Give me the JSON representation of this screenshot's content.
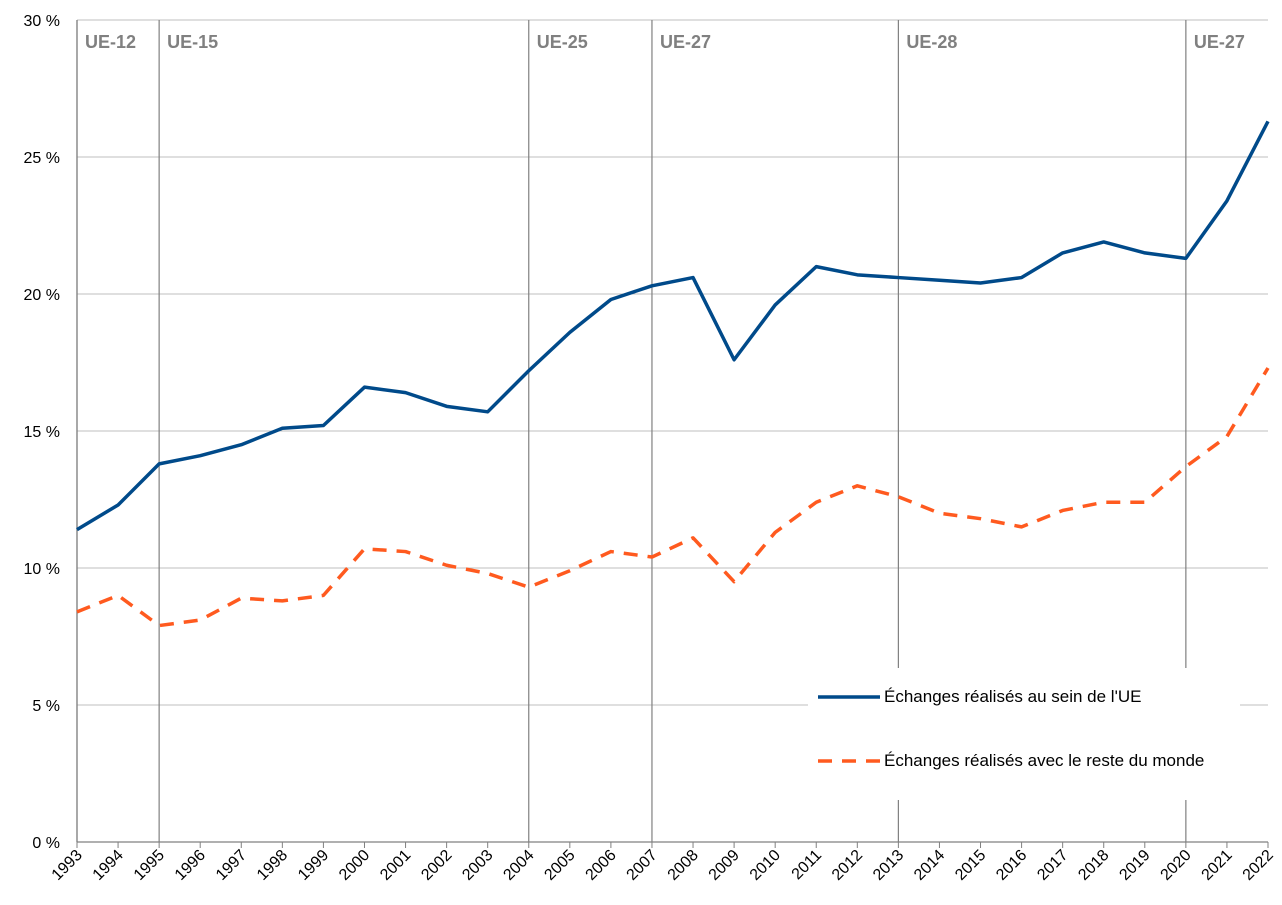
{
  "chart_data": {
    "type": "line",
    "x": [
      1993,
      1994,
      1995,
      1996,
      1997,
      1998,
      1999,
      2000,
      2001,
      2002,
      2003,
      2004,
      2005,
      2006,
      2007,
      2008,
      2009,
      2010,
      2011,
      2012,
      2013,
      2014,
      2015,
      2016,
      2017,
      2018,
      2019,
      2020,
      2021,
      2022
    ],
    "xlim": [
      1993,
      2022
    ],
    "xticks": [
      1993,
      1994,
      1995,
      1996,
      1997,
      1998,
      1999,
      2000,
      2001,
      2002,
      2003,
      2004,
      2005,
      2006,
      2007,
      2008,
      2009,
      2010,
      2011,
      2012,
      2013,
      2014,
      2015,
      2016,
      2017,
      2018,
      2019,
      2020,
      2021,
      2022
    ],
    "ylim": [
      0,
      30
    ],
    "yticks": [
      {
        "value": 0,
        "label": "0 %"
      },
      {
        "value": 5,
        "label": "5 %"
      },
      {
        "value": 10,
        "label": "10 %"
      },
      {
        "value": 15,
        "label": "15 %"
      },
      {
        "value": 20,
        "label": "20 %"
      },
      {
        "value": 25,
        "label": "25 %"
      },
      {
        "value": 30,
        "label": "30 %"
      }
    ],
    "grid": true,
    "legend": "bottom-right",
    "series": [
      {
        "name": "Échanges réalisés au sein de l'UE",
        "color": "#004a8a",
        "style": "solid",
        "values": [
          11.4,
          12.3,
          13.8,
          14.1,
          14.5,
          15.1,
          15.2,
          16.6,
          16.4,
          15.9,
          15.7,
          17.2,
          18.6,
          19.8,
          20.3,
          20.6,
          17.6,
          19.6,
          21.0,
          20.7,
          20.6,
          20.5,
          20.4,
          20.6,
          21.5,
          21.9,
          21.5,
          21.3,
          23.4,
          26.3
        ]
      },
      {
        "name": "Échanges réalisés avec le reste du monde",
        "color": "#ff5a1f",
        "style": "dashed",
        "values": [
          8.4,
          9.0,
          7.9,
          8.1,
          8.9,
          8.8,
          9.0,
          10.7,
          10.6,
          10.1,
          9.8,
          9.3,
          9.9,
          10.6,
          10.4,
          11.1,
          9.5,
          11.3,
          12.4,
          13.0,
          12.6,
          12.0,
          11.8,
          11.5,
          12.1,
          12.4,
          12.4,
          13.7,
          14.8,
          17.3
        ]
      }
    ],
    "annotations": [
      {
        "x": 1993,
        "label": "UE-12"
      },
      {
        "x": 1995,
        "label": "UE-15"
      },
      {
        "x": 2004,
        "label": "UE-25"
      },
      {
        "x": 2007,
        "label": "UE-27"
      },
      {
        "x": 2013,
        "label": "UE-28"
      },
      {
        "x": 2020,
        "label": "UE-27"
      }
    ]
  }
}
